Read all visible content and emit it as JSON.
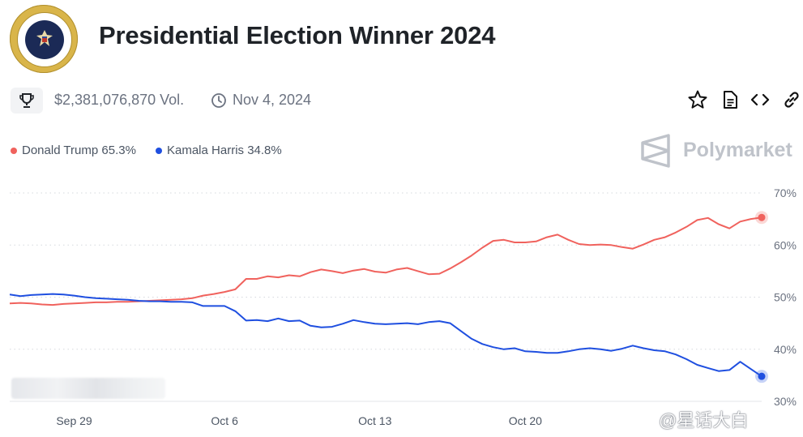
{
  "header": {
    "title": "Presidential Election Winner 2024",
    "seal_text": "SEAL OF THE PRESIDENT OF THE UNITED STATES"
  },
  "meta": {
    "volume": "$2,381,076,870 Vol.",
    "end_date": "Nov 4, 2024"
  },
  "toolbar": {
    "icons": [
      "star-icon",
      "document-icon",
      "embed-code-icon",
      "link-icon"
    ]
  },
  "legend": [
    {
      "label": "Donald Trump 65.3%",
      "color": "#f0625d"
    },
    {
      "label": "Kamala Harris 34.8%",
      "color": "#1f4fe0"
    }
  ],
  "brand": {
    "name": "Polymarket"
  },
  "watermark": "@星话大白",
  "chart_data": {
    "type": "line",
    "title": "",
    "xlabel": "",
    "ylabel": "",
    "x": [
      0,
      0.5,
      1,
      1.5,
      2,
      2.5,
      3,
      3.5,
      4,
      4.5,
      5,
      5.5,
      6,
      6.5,
      7,
      7.5,
      8,
      8.5,
      9,
      9.5,
      10,
      10.5,
      11,
      11.5,
      12,
      12.5,
      13,
      13.5,
      14,
      14.5,
      15,
      15.5,
      16,
      16.5,
      17,
      17.5,
      18,
      18.5,
      19,
      19.5,
      20,
      20.5,
      21,
      21.5,
      22,
      22.5,
      23,
      23.5,
      24,
      24.5,
      25,
      25.5,
      26,
      26.5,
      27,
      27.5,
      28,
      28.5,
      29,
      29.5,
      30,
      30.5,
      31,
      31.5,
      32,
      32.5,
      33,
      33.5,
      34,
      34.5,
      35
    ],
    "xticks": [
      {
        "x": 3,
        "label": "Sep 29"
      },
      {
        "x": 10,
        "label": "Oct 6"
      },
      {
        "x": 17,
        "label": "Oct 13"
      },
      {
        "x": 24,
        "label": "Oct 20"
      }
    ],
    "ylim": [
      30,
      70
    ],
    "yticks": [
      "70%",
      "60%",
      "50%",
      "40%",
      "30%"
    ],
    "ytick_values": [
      70,
      60,
      50,
      40,
      30
    ],
    "series": [
      {
        "name": "Donald Trump",
        "color": "#f0625d",
        "values": [
          48.8,
          48.9,
          48.8,
          48.6,
          48.5,
          48.7,
          48.8,
          48.9,
          49.0,
          49.0,
          49.1,
          49.1,
          49.2,
          49.3,
          49.4,
          49.5,
          49.6,
          49.8,
          50.3,
          50.6,
          51.0,
          51.5,
          53.5,
          53.5,
          54.0,
          53.8,
          54.2,
          54.0,
          54.8,
          55.3,
          55.0,
          54.6,
          55.1,
          55.4,
          54.9,
          54.7,
          55.3,
          55.6,
          55.0,
          54.4,
          54.5,
          55.5,
          56.7,
          58.0,
          59.5,
          60.8,
          61.0,
          60.5,
          60.5,
          60.7,
          61.5,
          62.0,
          61.0,
          60.2,
          60.0,
          60.1,
          60.0,
          59.6,
          59.3,
          60.1,
          61.0,
          61.5,
          62.4,
          63.5,
          64.8,
          65.2,
          64.0,
          63.2,
          64.5,
          65.0,
          65.3
        ]
      },
      {
        "name": "Kamala Harris",
        "color": "#1f4fe0",
        "values": [
          50.5,
          50.2,
          50.4,
          50.5,
          50.6,
          50.5,
          50.3,
          50.0,
          49.8,
          49.7,
          49.6,
          49.5,
          49.3,
          49.2,
          49.2,
          49.1,
          49.1,
          49.0,
          48.3,
          48.3,
          48.3,
          47.3,
          45.5,
          45.6,
          45.4,
          45.9,
          45.4,
          45.5,
          44.5,
          44.2,
          44.3,
          44.9,
          45.6,
          45.2,
          44.9,
          44.8,
          44.9,
          45.0,
          44.8,
          45.2,
          45.4,
          45.0,
          43.5,
          42.0,
          41.0,
          40.4,
          40.0,
          40.2,
          39.6,
          39.5,
          39.3,
          39.3,
          39.6,
          40.0,
          40.2,
          40.0,
          39.7,
          40.1,
          40.7,
          40.2,
          39.8,
          39.6,
          39.0,
          38.1,
          37.0,
          36.4,
          35.8,
          36.0,
          37.6,
          36.2,
          34.8
        ]
      }
    ]
  }
}
